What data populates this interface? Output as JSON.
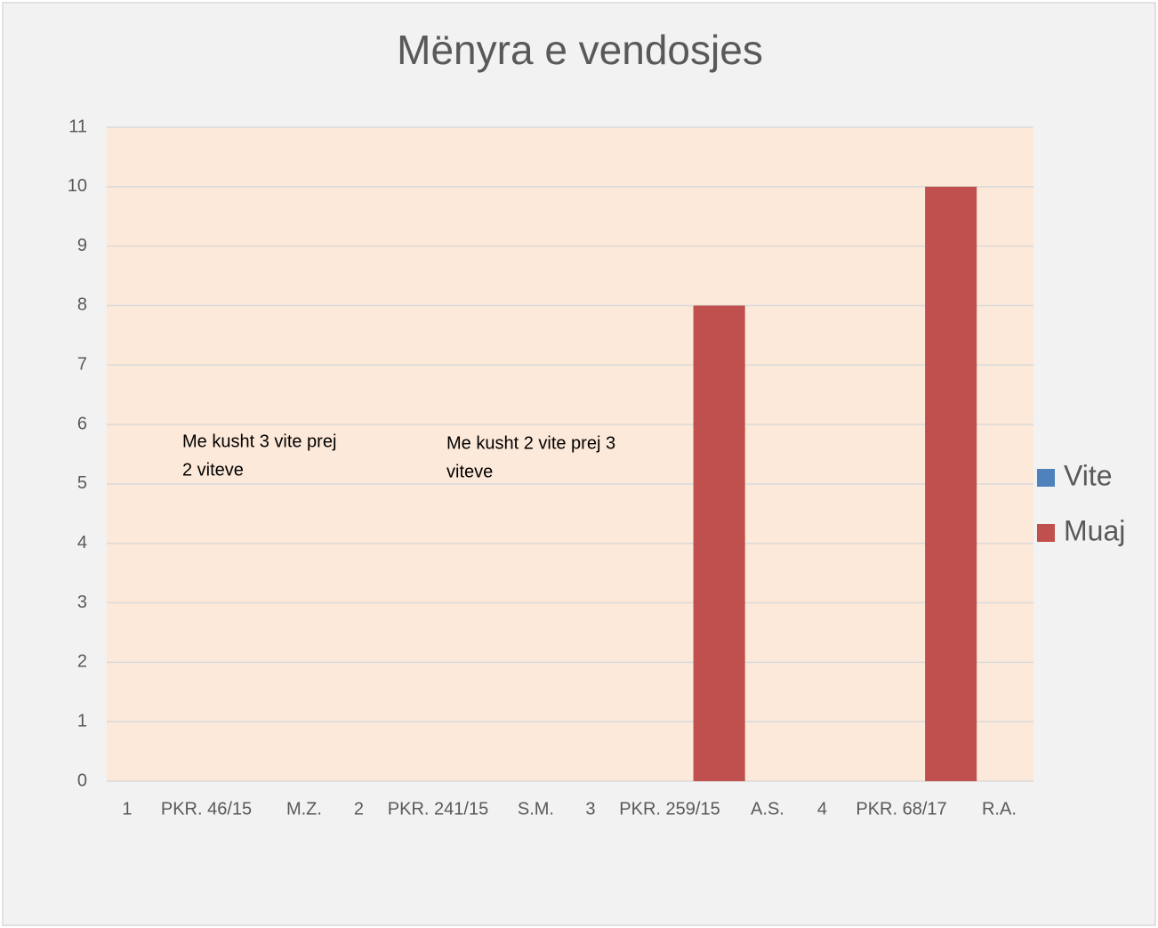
{
  "chart_data": {
    "type": "bar",
    "title": "Mënyra e vendosjes",
    "categories": [
      [
        "1",
        "PKR. 46/15",
        "M.Z."
      ],
      [
        "2",
        "PKR. 241/15",
        "S.M."
      ],
      [
        "3",
        "PKR. 259/15",
        "A.S."
      ],
      [
        "4",
        "PKR. 68/17",
        "R.A."
      ]
    ],
    "series": [
      {
        "name": "Vite",
        "color": "#4f81bd",
        "values": [
          0,
          0,
          0,
          0
        ]
      },
      {
        "name": "Muaj",
        "color": "#c0504d",
        "values": [
          0,
          0,
          8,
          10
        ]
      }
    ],
    "annotations": [
      [
        "Me kusht 3 vite prej",
        "2 viteve"
      ],
      [
        "Me kusht 2 vite prej 3",
        "viteve"
      ]
    ],
    "ylim": [
      0,
      11
    ],
    "yticks": [
      0,
      1,
      2,
      3,
      4,
      5,
      6,
      7,
      8,
      9,
      10,
      11
    ],
    "grid": true,
    "legend": "right",
    "plot_background": "#fde9d9"
  }
}
